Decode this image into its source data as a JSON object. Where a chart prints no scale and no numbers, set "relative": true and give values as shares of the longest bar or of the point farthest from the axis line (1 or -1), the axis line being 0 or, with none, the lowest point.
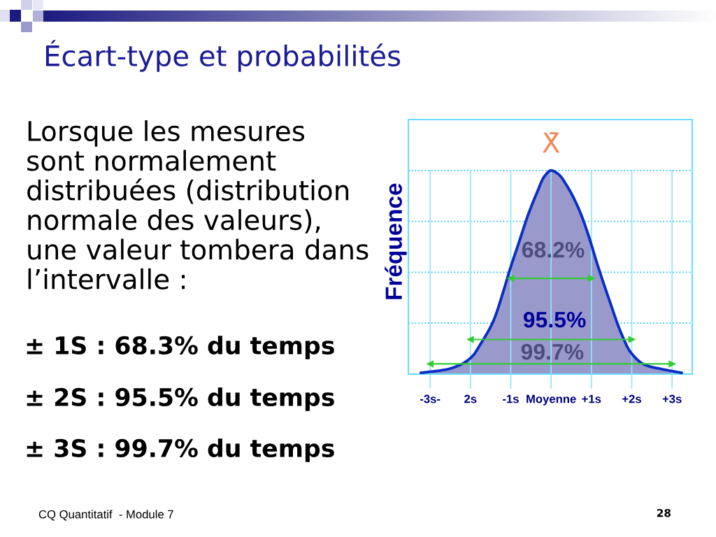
{
  "chart_data": {
    "type": "area",
    "title": "Écart-type et probabilités",
    "ylabel": "Fréquence",
    "relative": true,
    "xlim": [
      -3.54,
      3.5
    ],
    "xticks": [
      {
        "value": -3,
        "label": "-3s-"
      },
      {
        "value": -2,
        "label": "2s"
      },
      {
        "value": -1,
        "label": "-1s"
      },
      {
        "value": 0,
        "label": "Moyenne"
      },
      {
        "value": 1,
        "label": "+1s"
      },
      {
        "value": 2,
        "label": "+2s"
      },
      {
        "value": 3,
        "label": "+3s"
      }
    ],
    "series": [
      {
        "color": "#9999cc",
        "x": [
          -3.23,
          -2.59,
          -2.25,
          -1.96,
          -1.73,
          -1.44,
          -1.15,
          -1.03,
          -0.8,
          -0.57,
          -0.34,
          -0.17,
          0.0,
          0.18,
          0.41,
          0.7,
          0.93,
          1.16,
          1.45,
          1.74,
          1.97,
          2.32,
          2.78,
          3.24
        ],
        "values": [
          0.006,
          0.023,
          0.046,
          0.086,
          0.154,
          0.257,
          0.428,
          0.508,
          0.645,
          0.782,
          0.896,
          0.97,
          1.0,
          0.982,
          0.919,
          0.805,
          0.679,
          0.531,
          0.36,
          0.2,
          0.108,
          0.046,
          0.023,
          0.006
        ]
      },
      {
        "type": "line",
        "color": "#33cc33",
        "marker": "triangle",
        "x": [
          -1,
          1
        ],
        "values": [
          0.47,
          0.47
        ]
      },
      {
        "type": "line",
        "color": "#33cc33",
        "marker": "triangle",
        "x": [
          -2,
          2
        ],
        "values": [
          0.17,
          0.17
        ]
      },
      {
        "type": "line",
        "color": "#33cc33",
        "marker": "triangle",
        "x": [
          -3,
          3
        ],
        "values": [
          0.05,
          0.05
        ]
      }
    ],
    "ref_lines": [
      {
        "axis": "y",
        "value": 0.25,
        "color": "#33ccee",
        "line_style": "dotted"
      },
      {
        "axis": "y",
        "value": 0.5,
        "color": "#33ccee",
        "line_style": "dotted"
      },
      {
        "axis": "y",
        "value": 0.75,
        "color": "#33ccee",
        "line_style": "dotted"
      },
      {
        "axis": "y",
        "value": 1.0,
        "color": "#33ccee",
        "line_style": "dotted"
      },
      {
        "axis": "x",
        "value": -3,
        "color": "#8fe6ff"
      },
      {
        "axis": "x",
        "value": -2,
        "color": "#8fe6ff"
      },
      {
        "axis": "x",
        "value": -1,
        "color": "#8fe6ff"
      },
      {
        "axis": "x",
        "value": 0,
        "label": "X̄",
        "color": "#8fe6ff"
      },
      {
        "axis": "x",
        "value": 1,
        "color": "#8fe6ff"
      },
      {
        "axis": "x",
        "value": 2,
        "color": "#8fe6ff"
      },
      {
        "axis": "x",
        "value": 3,
        "color": "#8fe6ff"
      }
    ],
    "annotations": [
      "Lorsque les mesures\nsont normalement\ndistribuées (distribution\nnormale des valeurs),\nune valeur tombera dans\nl’intervalle :",
      "± 1S : 68.3% du temps",
      "± 2S : 95.5% du temps",
      "± 3S : 99.7% du temps",
      "CQ Quantitatif  - Module 7",
      "28",
      "68.2%",
      "95.5%",
      "99.7%"
    ]
  }
}
